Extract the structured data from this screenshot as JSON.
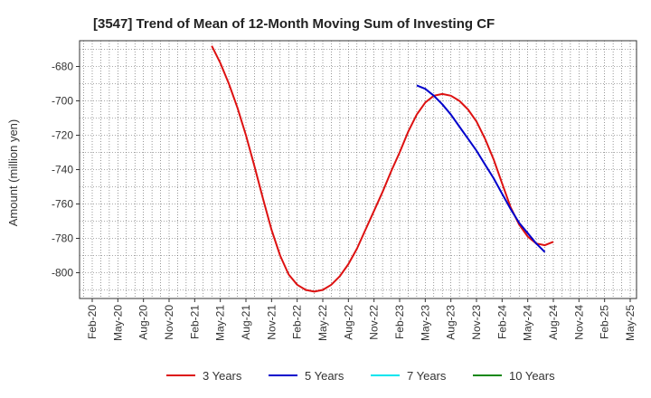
{
  "chart_data": {
    "type": "line",
    "title": "[3547]  Trend of Mean of 12-Month Moving Sum of Investing CF",
    "xlabel": "",
    "ylabel": "Amount (million yen)",
    "ylim": [
      -815,
      -665
    ],
    "yticks": [
      -680,
      -700,
      -720,
      -740,
      -760,
      -780,
      -800
    ],
    "x_categories": [
      "Feb-20",
      "May-20",
      "Aug-20",
      "Nov-20",
      "Feb-21",
      "May-21",
      "Aug-21",
      "Nov-21",
      "Feb-22",
      "May-22",
      "Aug-22",
      "Nov-22",
      "Feb-23",
      "May-23",
      "Aug-23",
      "Nov-23",
      "Feb-24",
      "May-24",
      "Aug-24",
      "Nov-24",
      "Feb-25",
      "May-25"
    ],
    "grid": true,
    "legend_position": "bottom",
    "series": [
      {
        "name": "3 Years",
        "color": "#dd1111",
        "points": [
          [
            "Apr-21",
            -668
          ],
          [
            "May-21",
            -678
          ],
          [
            "Jun-21",
            -690
          ],
          [
            "Jul-21",
            -704
          ],
          [
            "Aug-21",
            -720
          ],
          [
            "Sep-21",
            -738
          ],
          [
            "Oct-21",
            -757
          ],
          [
            "Nov-21",
            -775
          ],
          [
            "Dec-21",
            -790
          ],
          [
            "Jan-22",
            -801
          ],
          [
            "Feb-22",
            -807
          ],
          [
            "Mar-22",
            -810
          ],
          [
            "Apr-22",
            -811
          ],
          [
            "May-22",
            -810
          ],
          [
            "Jun-22",
            -807
          ],
          [
            "Jul-22",
            -802
          ],
          [
            "Aug-22",
            -795
          ],
          [
            "Sep-22",
            -786
          ],
          [
            "Oct-22",
            -775
          ],
          [
            "Nov-22",
            -764
          ],
          [
            "Dec-22",
            -753
          ],
          [
            "Jan-23",
            -741
          ],
          [
            "Feb-23",
            -730
          ],
          [
            "Mar-23",
            -718
          ],
          [
            "Apr-23",
            -708
          ],
          [
            "May-23",
            -701
          ],
          [
            "Jun-23",
            -697
          ],
          [
            "Jul-23",
            -696
          ],
          [
            "Aug-23",
            -697
          ],
          [
            "Sep-23",
            -700
          ],
          [
            "Oct-23",
            -705
          ],
          [
            "Nov-23",
            -712
          ],
          [
            "Dec-23",
            -722
          ],
          [
            "Jan-24",
            -734
          ],
          [
            "Feb-24",
            -748
          ],
          [
            "Mar-24",
            -762
          ],
          [
            "Apr-24",
            -772
          ],
          [
            "May-24",
            -779
          ],
          [
            "Jun-24",
            -783
          ],
          [
            "Jul-24",
            -784
          ],
          [
            "Aug-24",
            -782
          ]
        ]
      },
      {
        "name": "5 Years",
        "color": "#0000cc",
        "points": [
          [
            "Apr-23",
            -691
          ],
          [
            "May-23",
            -693
          ],
          [
            "Jun-23",
            -697
          ],
          [
            "Jul-23",
            -702
          ],
          [
            "Aug-23",
            -708
          ],
          [
            "Sep-23",
            -715
          ],
          [
            "Oct-23",
            -722
          ],
          [
            "Nov-23",
            -729
          ],
          [
            "Dec-23",
            -737
          ],
          [
            "Jan-24",
            -745
          ],
          [
            "Feb-24",
            -754
          ],
          [
            "Mar-24",
            -763
          ],
          [
            "Apr-24",
            -771
          ],
          [
            "May-24",
            -777
          ],
          [
            "Jun-24",
            -783
          ],
          [
            "Jul-24",
            -788
          ]
        ]
      },
      {
        "name": "7 Years",
        "color": "#00e5ee",
        "points": []
      },
      {
        "name": "10 Years",
        "color": "#118811",
        "points": []
      }
    ]
  }
}
